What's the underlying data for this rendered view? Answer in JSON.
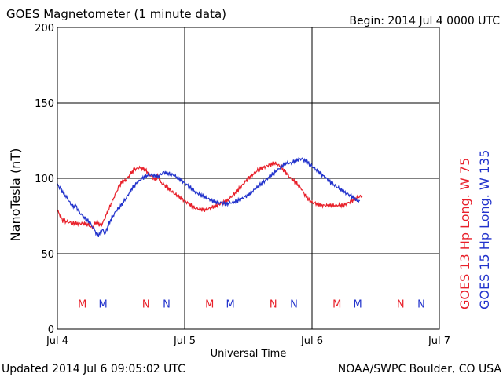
{
  "header": {
    "title": "GOES Magnetometer (1 minute data)",
    "begin": "Begin:  2014 Jul 4 0000 UTC"
  },
  "footer": {
    "updated": "Updated 2014 Jul  6 09:05:02 UTC",
    "credit": "NOAA/SWPC Boulder, CO USA"
  },
  "chart_data": {
    "type": "line",
    "title": "GOES Magnetometer (1 minute data)",
    "xlabel": "Universal Time",
    "ylabel": "NanoTesla (nT)",
    "xlim": [
      0,
      72
    ],
    "ylim": [
      0,
      200
    ],
    "x_ticks": [
      {
        "value": 0,
        "label": "Jul 4"
      },
      {
        "value": 24,
        "label": "Jul 5"
      },
      {
        "value": 48,
        "label": "Jul 6"
      },
      {
        "value": 72,
        "label": "Jul 7"
      }
    ],
    "y_ticks": [
      0,
      50,
      100,
      150,
      200
    ],
    "grid": true,
    "legend_position": "right-vertical",
    "series": [
      {
        "name": "GOES 13 Hp  Long. W 75",
        "color": "#e8202a",
        "x": [
          0,
          1,
          2,
          3,
          4,
          5,
          6,
          6.6,
          7,
          7.5,
          8,
          8.5,
          9,
          10,
          11,
          12,
          13,
          14,
          14.6,
          15.5,
          16.5,
          17.5,
          18.5,
          19,
          19.5,
          20,
          21,
          22,
          24,
          26,
          28,
          30,
          32,
          34,
          36,
          38,
          40,
          41,
          42,
          43,
          44,
          45,
          46,
          47,
          48,
          49,
          50,
          52,
          54,
          55,
          56,
          57,
          57.5
        ],
        "values": [
          79,
          72,
          71,
          70,
          70,
          70,
          69,
          67,
          70,
          71,
          69,
          70,
          74,
          82,
          90,
          97,
          99,
          104,
          106,
          107,
          106,
          102,
          99,
          102,
          97,
          96,
          93,
          90,
          85,
          80,
          79,
          82,
          85,
          92,
          100,
          106,
          109,
          110,
          108,
          104,
          100,
          97,
          93,
          87,
          84,
          83,
          82,
          82,
          82,
          84,
          86,
          88,
          88
        ]
      },
      {
        "name": "GOES 15 Hp  Long. W 135",
        "color": "#2233cc",
        "x": [
          0,
          1,
          2,
          2.5,
          3,
          3.5,
          4,
          5,
          6,
          7,
          7.5,
          8,
          8.5,
          9,
          9.5,
          10,
          11,
          12,
          13,
          14,
          15,
          16,
          17,
          18,
          19,
          20,
          21,
          22,
          24,
          26,
          28,
          30,
          32,
          34,
          36,
          38,
          40,
          42,
          43,
          44,
          45,
          46,
          47,
          48,
          50,
          52,
          54,
          55,
          56,
          56.5,
          57
        ],
        "values": [
          96,
          91,
          86,
          83,
          81,
          82,
          78,
          74,
          71,
          66,
          62,
          63,
          66,
          63,
          68,
          72,
          78,
          82,
          87,
          93,
          97,
          100,
          102,
          102,
          101,
          104,
          103,
          102,
          97,
          91,
          87,
          84,
          83,
          85,
          89,
          95,
          101,
          107,
          110,
          110,
          112,
          113,
          111,
          108,
          102,
          96,
          91,
          89,
          87,
          85,
          85
        ]
      }
    ],
    "markers": [
      {
        "label": "M",
        "x": 4.7,
        "color": "#e8202a"
      },
      {
        "label": "M",
        "x": 8.6,
        "color": "#2233cc"
      },
      {
        "label": "N",
        "x": 16.7,
        "color": "#e8202a"
      },
      {
        "label": "N",
        "x": 20.6,
        "color": "#2233cc"
      },
      {
        "label": "M",
        "x": 28.7,
        "color": "#e8202a"
      },
      {
        "label": "M",
        "x": 32.6,
        "color": "#2233cc"
      },
      {
        "label": "N",
        "x": 40.7,
        "color": "#e8202a"
      },
      {
        "label": "N",
        "x": 44.6,
        "color": "#2233cc"
      },
      {
        "label": "M",
        "x": 52.7,
        "color": "#e8202a"
      },
      {
        "label": "M",
        "x": 56.6,
        "color": "#2233cc"
      },
      {
        "label": "N",
        "x": 64.7,
        "color": "#e8202a"
      },
      {
        "label": "N",
        "x": 68.6,
        "color": "#2233cc"
      }
    ],
    "marker_value": 17
  }
}
